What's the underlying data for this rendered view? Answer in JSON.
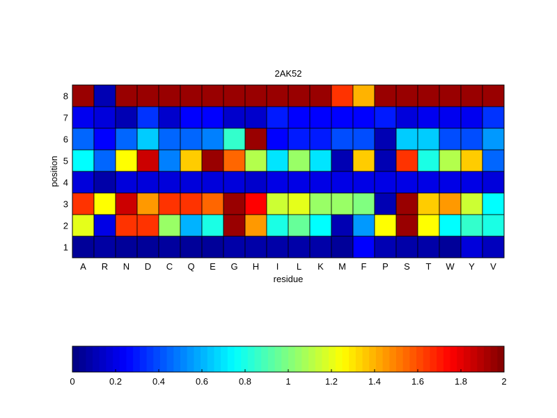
{
  "chart_data": {
    "type": "heatmap",
    "title": "2AK52",
    "xlabel": "residue",
    "ylabel": "position",
    "x_categories": [
      "A",
      "R",
      "N",
      "D",
      "C",
      "Q",
      "E",
      "G",
      "H",
      "I",
      "L",
      "K",
      "M",
      "F",
      "P",
      "S",
      "T",
      "W",
      "Y",
      "V"
    ],
    "y_categories": [
      "1",
      "2",
      "3",
      "4",
      "5",
      "6",
      "7",
      "8"
    ],
    "values": [
      [
        0.05,
        0.07,
        0.05,
        0.05,
        0.06,
        0.05,
        0.05,
        0.08,
        0.08,
        0.08,
        0.08,
        0.08,
        0.05,
        0.25,
        0.1,
        0.08,
        0.08,
        0.05,
        0.18,
        0.12
      ],
      [
        1.2,
        0.2,
        1.65,
        1.65,
        1.05,
        0.6,
        0.8,
        1.95,
        1.45,
        0.8,
        0.95,
        0.75,
        0.1,
        0.55,
        1.25,
        1.95,
        1.25,
        0.75,
        0.85,
        0.8
      ],
      [
        1.65,
        1.25,
        1.85,
        1.45,
        1.65,
        1.65,
        1.55,
        1.95,
        1.75,
        1.15,
        1.2,
        1.05,
        1.05,
        1.0,
        0.1,
        1.95,
        1.35,
        1.45,
        1.15,
        0.75
      ],
      [
        0.18,
        0.08,
        0.18,
        0.18,
        0.18,
        0.18,
        0.18,
        0.18,
        0.15,
        0.2,
        0.2,
        0.2,
        0.2,
        0.2,
        0.2,
        0.2,
        0.2,
        0.2,
        0.2,
        0.18
      ],
      [
        0.75,
        0.45,
        1.25,
        1.85,
        0.5,
        1.35,
        1.95,
        1.55,
        1.1,
        0.7,
        1.05,
        0.7,
        0.1,
        1.35,
        0.1,
        1.65,
        0.8,
        1.1,
        1.35,
        0.45
      ],
      [
        0.45,
        0.25,
        0.45,
        0.65,
        0.45,
        0.45,
        0.5,
        0.85,
        1.95,
        0.25,
        0.3,
        0.3,
        0.4,
        0.4,
        0.1,
        0.65,
        0.65,
        0.4,
        0.4,
        0.55
      ],
      [
        0.22,
        0.18,
        0.1,
        0.35,
        0.15,
        0.25,
        0.25,
        0.15,
        0.15,
        0.3,
        0.25,
        0.25,
        0.25,
        0.25,
        0.3,
        0.18,
        0.22,
        0.22,
        0.22,
        0.35
      ],
      [
        1.95,
        0.1,
        1.95,
        1.95,
        1.95,
        1.95,
        1.95,
        1.95,
        1.95,
        1.95,
        1.95,
        1.95,
        1.65,
        1.4,
        1.95,
        1.95,
        1.95,
        1.95,
        1.95,
        1.95
      ]
    ],
    "colorscale": "jet",
    "colorbar": {
      "range": [
        0,
        2
      ],
      "ticks": [
        "0",
        "0.2",
        "0.4",
        "0.6",
        "0.8",
        "1",
        "1.2",
        "1.4",
        "1.6",
        "1.8",
        "2"
      ]
    }
  }
}
